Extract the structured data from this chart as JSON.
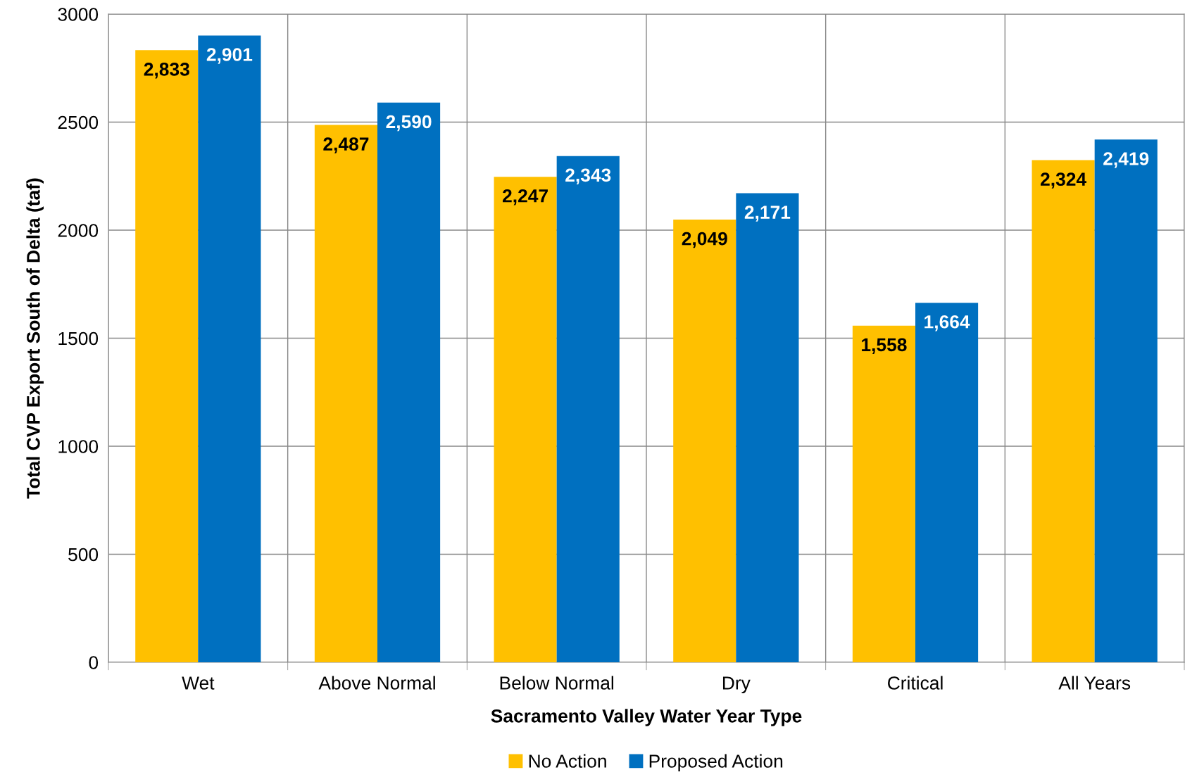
{
  "chart_data": {
    "type": "bar",
    "xlabel": "Sacramento Valley Water Year Type",
    "ylabel": "Total CVP Export South of Delta (taf)",
    "categories": [
      "Wet",
      "Above Normal",
      "Below Normal",
      "Dry",
      "Critical",
      "All Years"
    ],
    "series": [
      {
        "name": "No Action",
        "color": "#ffc000",
        "values": [
          2833,
          2487,
          2247,
          2049,
          1558,
          2324
        ],
        "value_labels": [
          "2,833",
          "2,487",
          "2,247",
          "2,049",
          "1,558",
          "2,324"
        ]
      },
      {
        "name": "Proposed Action",
        "color": "#0070c0",
        "values": [
          2901,
          2590,
          2343,
          2171,
          1664,
          2419
        ],
        "value_labels": [
          "2,901",
          "2,590",
          "2,343",
          "2,171",
          "1,664",
          "2,419"
        ]
      }
    ],
    "ylim": [
      0,
      3000
    ],
    "yticks": [
      0,
      500,
      1000,
      1500,
      2000,
      2500,
      3000
    ],
    "grid": true,
    "legend": "bottom"
  }
}
